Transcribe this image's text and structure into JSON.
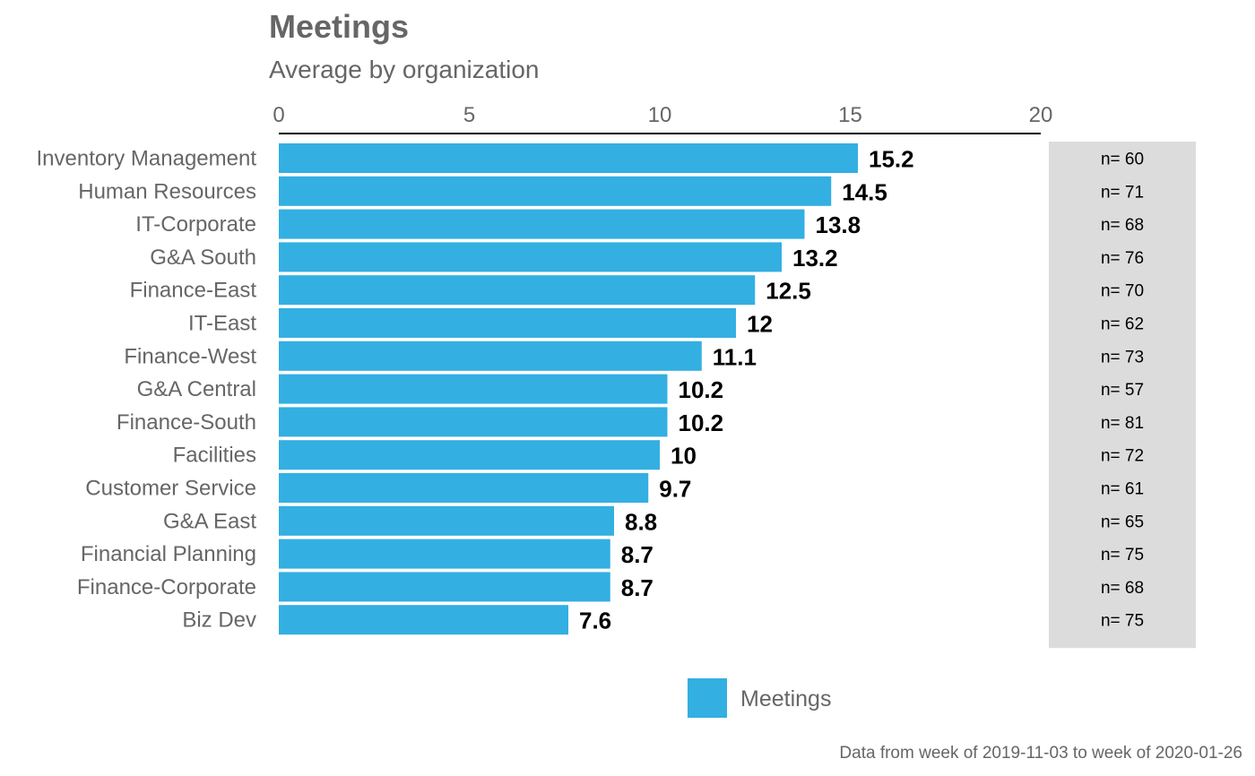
{
  "chart_data": {
    "type": "bar",
    "orientation": "horizontal",
    "title": "Meetings",
    "subtitle": "Average by organization",
    "caption": "Data from week of 2019-11-03 to week of 2020-01-26",
    "xlim": [
      0,
      20
    ],
    "x_ticks": [
      0,
      5,
      10,
      15,
      20
    ],
    "x_axis_position": "top",
    "grid": false,
    "legend_position": "bottom",
    "series": [
      {
        "name": "Meetings",
        "color": "#33AFE2",
        "values": [
          15.2,
          14.5,
          13.8,
          13.2,
          12.5,
          12,
          11.1,
          10.2,
          10.2,
          10,
          9.7,
          8.8,
          8.7,
          8.7,
          7.6
        ]
      }
    ],
    "categories": [
      "Inventory Management",
      "Human Resources",
      "IT-Corporate",
      "G&A South",
      "Finance-East",
      "IT-East",
      "Finance-West",
      "G&A Central",
      "Finance-South",
      "Facilities",
      "Customer Service",
      "G&A East",
      "Financial Planning",
      "Finance-Corporate",
      "Biz Dev"
    ],
    "value_labels": [
      "15.2",
      "14.5",
      "13.8",
      "13.2",
      "12.5",
      "12",
      "11.1",
      "10.2",
      "10.2",
      "10",
      "9.7",
      "8.8",
      "8.7",
      "8.7",
      "7.6"
    ],
    "n_labels": [
      "n= 60",
      "n= 71",
      "n= 68",
      "n= 76",
      "n= 70",
      "n= 62",
      "n= 73",
      "n= 57",
      "n= 81",
      "n= 72",
      "n= 61",
      "n= 65",
      "n= 75",
      "n= 68",
      "n= 75"
    ],
    "n_panel_color": "#DCDCDC"
  }
}
